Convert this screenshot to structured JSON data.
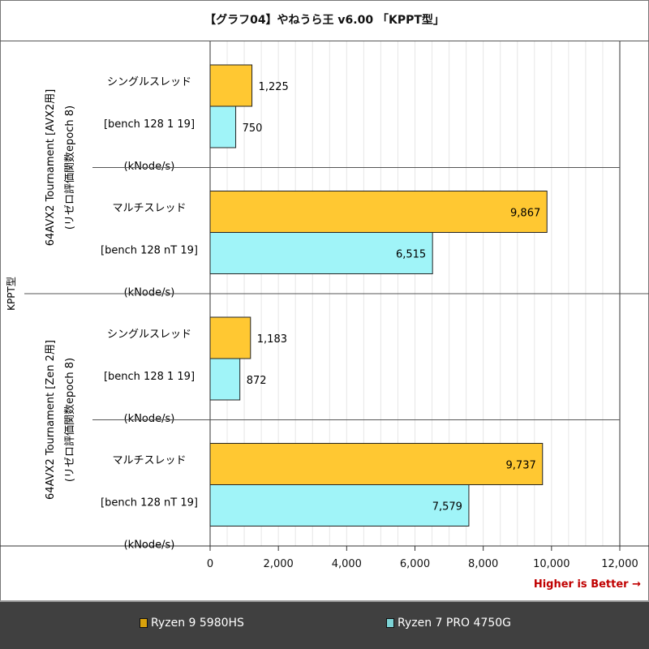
{
  "chart_data": {
    "type": "bar",
    "orientation": "horizontal",
    "title": "【グラフ04】やねうら王 v6.00 「KPPT型」",
    "outer_group_label": "KPPT型",
    "groups": [
      {
        "label_lines": [
          "64AVX2 Tournament [AVX2用]",
          "(リゼロ評価関数epoch 8)"
        ],
        "categories": [
          {
            "label_lines": [
              "シングルスレッド",
              "[bench 128 1 19]",
              "(kNode/s)"
            ],
            "values": [
              1225,
              750
            ],
            "value_labels": [
              "1,225",
              "750"
            ]
          },
          {
            "label_lines": [
              "マルチスレッド",
              "[bench 128 nT 19]",
              "(kNode/s)"
            ],
            "values": [
              9867,
              6515
            ],
            "value_labels": [
              "9,867",
              "6,515"
            ]
          }
        ]
      },
      {
        "label_lines": [
          "64AVX2 Tournament [Zen 2用]",
          "(リゼロ評価関数epoch 8)"
        ],
        "categories": [
          {
            "label_lines": [
              "シングルスレッド",
              "[bench 128 1 19]",
              "(kNode/s)"
            ],
            "values": [
              1183,
              872
            ],
            "value_labels": [
              "1,183",
              "872"
            ]
          },
          {
            "label_lines": [
              "マルチスレッド",
              "[bench 128 nT 19]",
              "(kNode/s)"
            ],
            "values": [
              9737,
              7579
            ],
            "value_labels": [
              "9,737",
              "7,579"
            ]
          }
        ]
      }
    ],
    "series": [
      {
        "name": "Ryzen 9 5980HS",
        "color": "#ffc832"
      },
      {
        "name": "Ryzen 7 PRO 4750G",
        "color": "#a0f4f8"
      }
    ],
    "xlim": [
      0,
      12000
    ],
    "xticks": [
      "0",
      "2,000",
      "4,000",
      "6,000",
      "8,000",
      "10,000",
      "12,000"
    ],
    "xtick_values": [
      0,
      2000,
      4000,
      6000,
      8000,
      10000,
      12000
    ],
    "annotation": "Higher is Better →",
    "legend_position": "bottom"
  }
}
